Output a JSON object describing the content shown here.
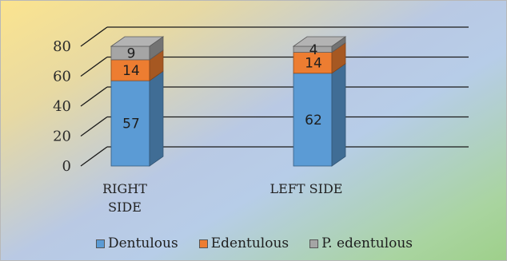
{
  "chart_data": {
    "type": "bar",
    "stacked": true,
    "three_d": true,
    "categories": [
      "RIGHT SIDE",
      "LEFT SIDE"
    ],
    "category_lines": [
      [
        "RIGHT",
        "SIDE"
      ],
      [
        "LEFT SIDE"
      ]
    ],
    "series": [
      {
        "name": "Dentulous",
        "values": [
          57,
          62
        ],
        "color": "#5b9bd5"
      },
      {
        "name": "Edentulous",
        "values": [
          14,
          14
        ],
        "color": "#ed7d31"
      },
      {
        "name": "P. edentulous",
        "values": [
          9,
          4
        ],
        "color": "#a5a5a5"
      }
    ],
    "yticks": [
      0,
      20,
      40,
      60,
      80
    ],
    "ylim": [
      0,
      80
    ],
    "grid": true,
    "legend_position": "bottom"
  }
}
